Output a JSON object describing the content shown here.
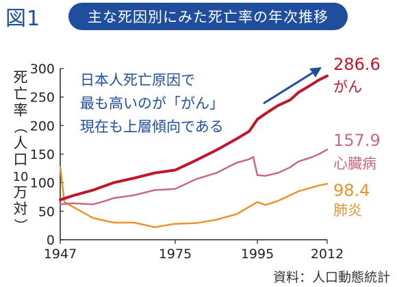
{
  "header": {
    "figure_label": "図1",
    "title": "主な死因別にみた死亡率の年次推移"
  },
  "source": "資料：人口動態統計",
  "annotation": {
    "lines": [
      "日本人死亡原因で",
      "最も高いのが「がん」",
      "現在も上層傾向である"
    ],
    "color": "#1f4e9c"
  },
  "chart_data": {
    "type": "line",
    "ylabel_chars": [
      "死",
      "亡",
      "率",
      "（",
      "人",
      "口",
      "10",
      "万",
      "対",
      "）"
    ],
    "xlim": [
      1947,
      2012
    ],
    "ylim": [
      0,
      300
    ],
    "x_ticks": [
      1947,
      1975,
      1995,
      2012
    ],
    "y_ticks": [
      0,
      50,
      100,
      150,
      200,
      250,
      300
    ],
    "grid": false,
    "series": [
      {
        "name": "がん",
        "end_value": "286.6",
        "color": "#c0152a",
        "x": [
          1947,
          1950,
          1955,
          1960,
          1965,
          1970,
          1975,
          1980,
          1985,
          1990,
          1993,
          1995,
          1997,
          2000,
          2003,
          2005,
          2008,
          2010,
          2012
        ],
        "y": [
          70,
          77,
          87,
          100,
          108,
          117,
          122,
          139,
          157,
          177,
          190,
          211,
          221,
          235,
          245,
          258,
          271,
          280,
          287
        ]
      },
      {
        "name": "心臓病",
        "end_value": "157.9",
        "color": "#c96a7c",
        "x": [
          1947,
          1950,
          1955,
          1958,
          1960,
          1965,
          1970,
          1975,
          1980,
          1985,
          1990,
          1993,
          1994,
          1995,
          1997,
          2000,
          2003,
          2005,
          2008,
          2010,
          2012
        ],
        "y": [
          62,
          64,
          62,
          68,
          73,
          78,
          87,
          89,
          106,
          117,
          135,
          141,
          145,
          113,
          112,
          117,
          127,
          137,
          144,
          150,
          158
        ]
      },
      {
        "name": "肺炎",
        "end_value": "98.4",
        "color": "#e8942c",
        "x": [
          1947,
          1948,
          1950,
          1955,
          1960,
          1965,
          1970,
          1975,
          1980,
          1985,
          1990,
          1995,
          1997,
          2000,
          2003,
          2005,
          2008,
          2010,
          2012
        ],
        "y": [
          128,
          66,
          58,
          38,
          30,
          30,
          22,
          28,
          29,
          35,
          45,
          66,
          61,
          68,
          78,
          85,
          91,
          95,
          98
        ]
      }
    ]
  }
}
